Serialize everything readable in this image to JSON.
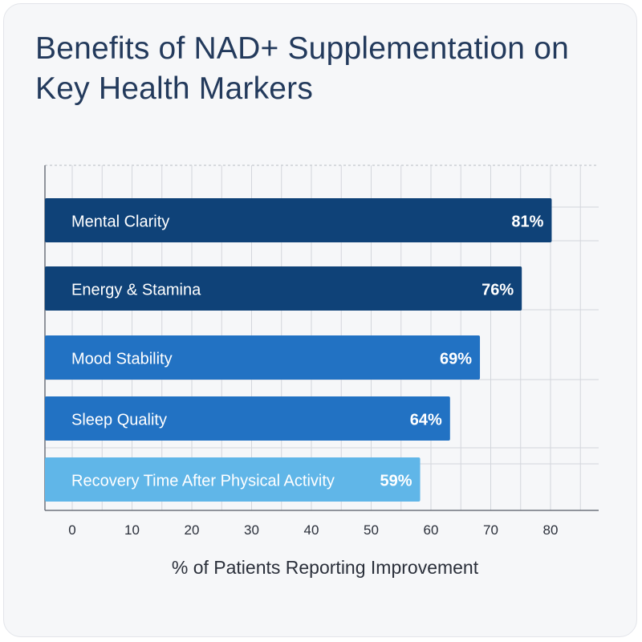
{
  "chart_data": {
    "type": "bar",
    "orientation": "horizontal",
    "title": "Benefits of NAD+ Supplementation on Key Health Markers",
    "xlabel": "% of Patients Reporting Improvement",
    "ylabel": "",
    "xlim": [
      0,
      90
    ],
    "xticks": [
      "0",
      "10",
      "20",
      "30",
      "40",
      "50",
      "60",
      "70",
      "80"
    ],
    "grid": true,
    "bars": [
      {
        "label": "Mental Clarity",
        "value": 81,
        "value_label": "81%",
        "color": "#0f4278"
      },
      {
        "label": "Energy & Stamina",
        "value": 76,
        "value_label": "76%",
        "color": "#0f4278"
      },
      {
        "label": "Mood Stability",
        "value": 69,
        "value_label": "69%",
        "color": "#2272c3"
      },
      {
        "label": "Sleep Quality",
        "value": 64,
        "value_label": "64%",
        "color": "#2272c3"
      },
      {
        "label": "Recovery Time After Physical Activity",
        "value": 59,
        "value_label": "59%",
        "color": "#60b6e8"
      }
    ]
  }
}
